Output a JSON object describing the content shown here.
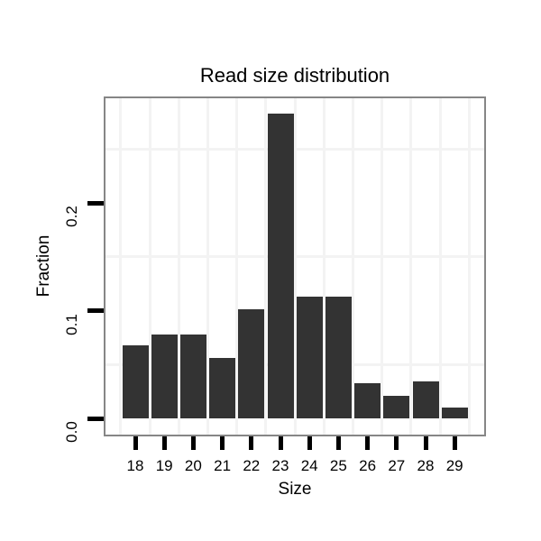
{
  "chart_data": {
    "type": "bar",
    "title": "Read size distribution",
    "xlabel": "Size",
    "ylabel": "Fraction",
    "categories": [
      "18",
      "19",
      "20",
      "21",
      "22",
      "23",
      "24",
      "25",
      "26",
      "27",
      "28",
      "29"
    ],
    "values": [
      0.068,
      0.078,
      0.078,
      0.056,
      0.101,
      0.283,
      0.113,
      0.113,
      0.033,
      0.021,
      0.034,
      0.01
    ],
    "ytick_values": [
      0.0,
      0.1,
      0.2
    ],
    "ytick_labels": [
      "0.0",
      "0.1",
      "0.2"
    ],
    "ylim": [
      0,
      0.3
    ],
    "legend": "none",
    "grid": {
      "minor_y_values": [
        0.05,
        0.15,
        0.25
      ],
      "minor_x_between_categories": true,
      "major_visible": false
    },
    "colors": {
      "bar_fill": "#333333",
      "panel_border": "#868686",
      "gridline": "#f3f3f3",
      "tick": "#000000",
      "text": "#000000",
      "background": "#ffffff"
    }
  }
}
